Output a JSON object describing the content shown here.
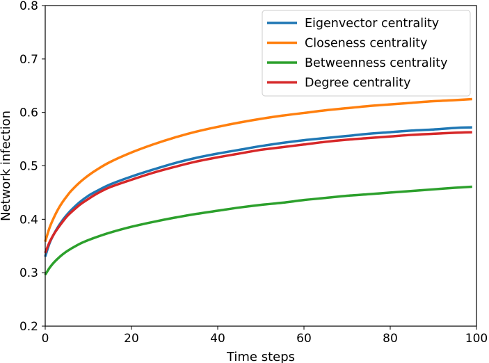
{
  "chart_data": {
    "type": "line",
    "xlabel": "Time steps",
    "ylabel": "Network infection",
    "xlim": [
      0,
      100
    ],
    "ylim": [
      0.2,
      0.8
    ],
    "xticks": [
      0,
      20,
      40,
      60,
      80,
      100
    ],
    "yticks": [
      0.2,
      0.3,
      0.4,
      0.5,
      0.6,
      0.7,
      0.8
    ],
    "legend_position": "top-right",
    "grid": false,
    "x": [
      0,
      1,
      2,
      3,
      4,
      5,
      6,
      8,
      10,
      12,
      15,
      20,
      25,
      30,
      35,
      40,
      45,
      50,
      55,
      60,
      65,
      70,
      75,
      80,
      85,
      90,
      95,
      99
    ],
    "series": [
      {
        "name": "Eigenvector centrality",
        "color": "#1f77b4",
        "values": [
          0.33,
          0.355,
          0.372,
          0.386,
          0.398,
          0.408,
          0.417,
          0.432,
          0.444,
          0.453,
          0.465,
          0.48,
          0.493,
          0.505,
          0.515,
          0.523,
          0.53,
          0.537,
          0.543,
          0.548,
          0.552,
          0.556,
          0.56,
          0.563,
          0.566,
          0.568,
          0.571,
          0.572
        ]
      },
      {
        "name": "Closeness centrality",
        "color": "#ff7f0e",
        "values": [
          0.358,
          0.384,
          0.403,
          0.419,
          0.432,
          0.443,
          0.453,
          0.469,
          0.482,
          0.493,
          0.507,
          0.525,
          0.54,
          0.553,
          0.564,
          0.573,
          0.581,
          0.588,
          0.594,
          0.599,
          0.604,
          0.608,
          0.612,
          0.615,
          0.618,
          0.621,
          0.623,
          0.625
        ]
      },
      {
        "name": "Betweenness centrality",
        "color": "#2ca02c",
        "values": [
          0.296,
          0.309,
          0.319,
          0.327,
          0.334,
          0.34,
          0.345,
          0.354,
          0.361,
          0.367,
          0.375,
          0.386,
          0.395,
          0.403,
          0.41,
          0.416,
          0.422,
          0.427,
          0.431,
          0.436,
          0.44,
          0.444,
          0.447,
          0.45,
          0.453,
          0.456,
          0.459,
          0.461
        ]
      },
      {
        "name": "Degree centrality",
        "color": "#d62728",
        "values": [
          0.337,
          0.357,
          0.372,
          0.384,
          0.395,
          0.405,
          0.413,
          0.427,
          0.438,
          0.448,
          0.46,
          0.474,
          0.487,
          0.498,
          0.508,
          0.516,
          0.523,
          0.53,
          0.535,
          0.54,
          0.545,
          0.549,
          0.552,
          0.555,
          0.558,
          0.56,
          0.562,
          0.563
        ]
      }
    ]
  }
}
